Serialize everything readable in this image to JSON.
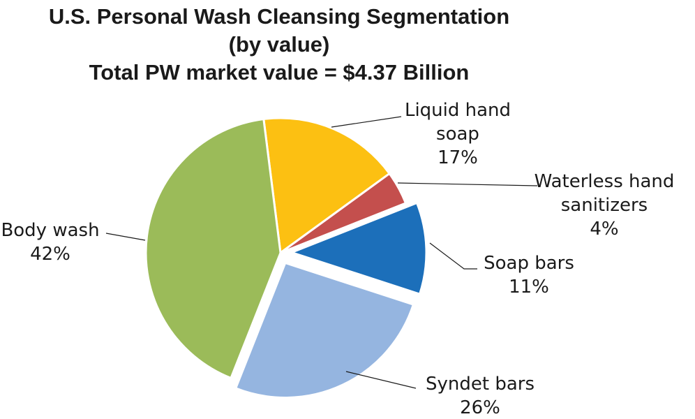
{
  "chart_data": {
    "type": "pie",
    "title_lines": [
      "U.S. Personal Wash Cleansing  Segmentation",
      "(by value)",
      "Total PW market value = $4.37 Billion"
    ],
    "unit": "%",
    "slices": [
      {
        "label_lines": [
          "Liquid hand",
          "soap"
        ],
        "value": 17,
        "value_label": "17%",
        "color": "#FCC012",
        "exploded": false
      },
      {
        "label_lines": [
          "Waterless hand",
          "sanitizers"
        ],
        "value": 4,
        "value_label": "4%",
        "color": "#C44F4D",
        "exploded": false
      },
      {
        "label_lines": [
          "Soap bars"
        ],
        "value": 11,
        "value_label": "11%",
        "color": "#1C6FBA",
        "exploded": true
      },
      {
        "label_lines": [
          "Syndet bars"
        ],
        "value": 26,
        "value_label": "26%",
        "color": "#95B5E0",
        "exploded": true
      },
      {
        "label_lines": [
          "Body wash"
        ],
        "value": 42,
        "value_label": "42%",
        "color": "#9BBB59",
        "exploded": false
      }
    ]
  }
}
